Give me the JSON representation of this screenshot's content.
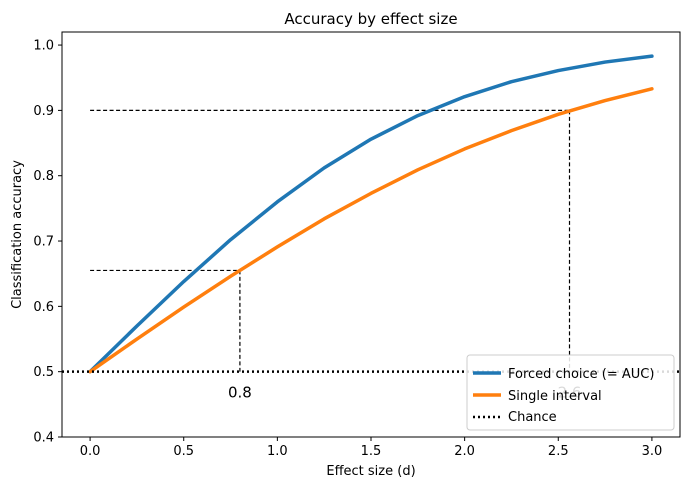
{
  "chart_data": {
    "type": "line",
    "title": "Accuracy by effect size",
    "xlabel": "Effect size (d)",
    "ylabel": "Classification accuracy",
    "xlim": [
      -0.15,
      3.15
    ],
    "ylim": [
      0.4,
      1.02
    ],
    "xticks": [
      "0.0",
      "0.5",
      "1.0",
      "1.5",
      "2.0",
      "2.5",
      "3.0"
    ],
    "yticks": [
      "0.4",
      "0.5",
      "0.6",
      "0.7",
      "0.8",
      "0.9",
      "1.0"
    ],
    "grid": false,
    "legend_position": "lower-right",
    "series": [
      {
        "name": "Forced choice (= AUC)",
        "color": "#1f77b4",
        "x": [
          0.0,
          0.25,
          0.5,
          0.75,
          1.0,
          1.25,
          1.5,
          1.75,
          2.0,
          2.25,
          2.5,
          2.75,
          3.0
        ],
        "y": [
          0.5,
          0.57,
          0.638,
          0.702,
          0.76,
          0.812,
          0.856,
          0.892,
          0.921,
          0.944,
          0.961,
          0.974,
          0.983
        ]
      },
      {
        "name": "Single interval",
        "color": "#ff7f0e",
        "x": [
          0.0,
          0.25,
          0.5,
          0.75,
          1.0,
          1.25,
          1.5,
          1.75,
          2.0,
          2.25,
          2.5,
          2.75,
          3.0
        ],
        "y": [
          0.5,
          0.55,
          0.599,
          0.646,
          0.691,
          0.734,
          0.773,
          0.809,
          0.841,
          0.869,
          0.894,
          0.915,
          0.933
        ]
      }
    ],
    "reference_line": {
      "name": "Chance",
      "y": 0.5,
      "style": "dotted",
      "color": "#000000"
    },
    "annotations": [
      {
        "x": 0.8,
        "y": 0.655,
        "label": "0.8"
      },
      {
        "x": 2.56,
        "y": 0.9,
        "label": "2.6"
      }
    ]
  }
}
